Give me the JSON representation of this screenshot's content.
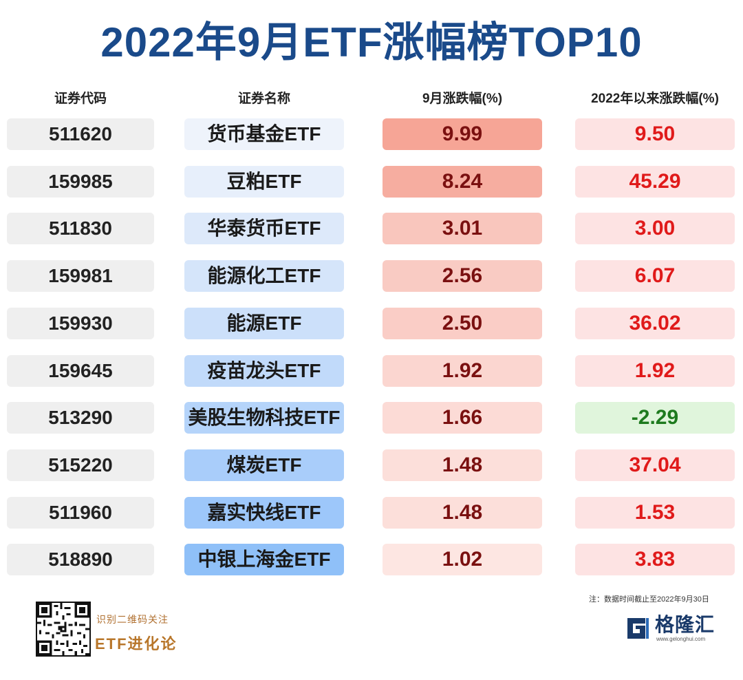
{
  "title": "2022年9月ETF涨幅榜TOP10",
  "headers": {
    "code": "证券代码",
    "name": "证券名称",
    "sep": "9月涨跌幅(%)",
    "ytd": "2022年以来涨跌幅(%)"
  },
  "rows": [
    {
      "code": "511620",
      "name": "货币基金ETF",
      "sep": "9.99",
      "ytd": "9.50",
      "sep_color": "#f6a596",
      "name_color": "#eef3fb",
      "ytd_color": "#fde3e3",
      "ytd_text_color": "#e01a1a"
    },
    {
      "code": "159985",
      "name": "豆粕ETF",
      "sep": "8.24",
      "ytd": "45.29",
      "sep_color": "#f6ada0",
      "name_color": "#e7effb",
      "ytd_color": "#fde3e3",
      "ytd_text_color": "#e01a1a"
    },
    {
      "code": "511830",
      "name": "华泰货币ETF",
      "sep": "3.01",
      "ytd": "3.00",
      "sep_color": "#f9c6bd",
      "name_color": "#dde9fa",
      "ytd_color": "#fde3e3",
      "ytd_text_color": "#e01a1a"
    },
    {
      "code": "159981",
      "name": "能源化工ETF",
      "sep": "2.56",
      "ytd": "6.07",
      "sep_color": "#f9cbc3",
      "name_color": "#d5e5fa",
      "ytd_color": "#fde3e3",
      "ytd_text_color": "#e01a1a"
    },
    {
      "code": "159930",
      "name": "能源ETF",
      "sep": "2.50",
      "ytd": "36.02",
      "sep_color": "#facdc6",
      "name_color": "#cce0fa",
      "ytd_color": "#fde3e3",
      "ytd_text_color": "#e01a1a"
    },
    {
      "code": "159645",
      "name": "疫苗龙头ETF",
      "sep": "1.92",
      "ytd": "1.92",
      "sep_color": "#fbd6d0",
      "name_color": "#c1dafa",
      "ytd_color": "#fde3e3",
      "ytd_text_color": "#e01a1a"
    },
    {
      "code": "513290",
      "name": "美股生物科技ETF",
      "sep": "1.66",
      "ytd": "-2.29",
      "sep_color": "#fcdbd6",
      "name_color": "#b5d4fa",
      "ytd_color": "#e0f5dc",
      "ytd_text_color": "#1e7a1e"
    },
    {
      "code": "515220",
      "name": "煤炭ETF",
      "sep": "1.48",
      "ytd": "37.04",
      "sep_color": "#fcdfda",
      "name_color": "#a9cdfa",
      "ytd_color": "#fde3e3",
      "ytd_text_color": "#e01a1a"
    },
    {
      "code": "511960",
      "name": "嘉实快线ETF",
      "sep": "1.48",
      "ytd": "1.53",
      "sep_color": "#fcdfda",
      "name_color": "#9dc7fa",
      "ytd_color": "#fde3e3",
      "ytd_text_color": "#e01a1a"
    },
    {
      "code": "518890",
      "name": "中银上海金ETF",
      "sep": "1.02",
      "ytd": "3.83",
      "sep_color": "#fde6e2",
      "name_color": "#8fc0f8",
      "ytd_color": "#fde3e3",
      "ytd_text_color": "#e01a1a"
    }
  ],
  "note": "注：数据时间截止至2022年9月30日",
  "footer": {
    "qr_caption": "识别二维码关注",
    "brand_name": "ETF进化论",
    "logo_text": "格隆汇",
    "logo_url": "www.gelonghui.com",
    "logo_icon": "gelonghui-logo-icon",
    "qr_icon": "qr-code-icon"
  }
}
